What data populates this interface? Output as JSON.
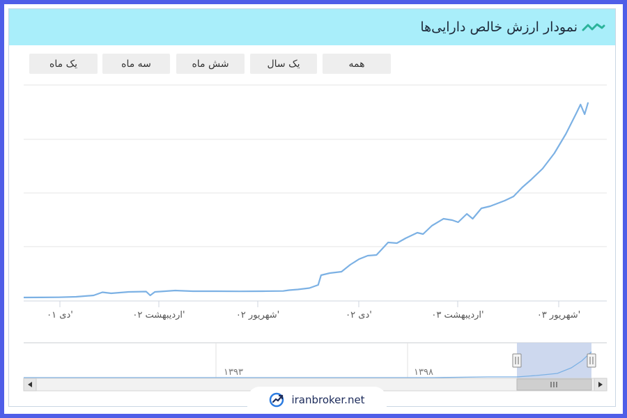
{
  "title": "نمودار ارزش خالص دارایی‌ها",
  "range_buttons": [
    {
      "label": "همه"
    },
    {
      "label": "یک سال"
    },
    {
      "label": "شش ماه"
    },
    {
      "label": "سه ماه"
    },
    {
      "label": "یک ماه"
    }
  ],
  "navigator": {
    "labels": [
      "۱۳۹۳",
      "۱۳۹۸"
    ]
  },
  "footer": {
    "brand": "iranbroker.net"
  },
  "colors": {
    "header_bg": "#a9eefa",
    "line": "#7cb1e4",
    "frame": "#4f5ee8",
    "accent": "#2ab39a"
  },
  "chart_data": {
    "type": "line",
    "title": "نمودار ارزش خالص دارایی‌ها",
    "x_ticks": [
      "دی ۰۱'",
      "اردیبهشت ۰۲'",
      "شهریور ۰۲'",
      "دی ۰۲'",
      "اردیبهشت ۰۳'",
      "شهریور ۰۳'"
    ],
    "grid": true,
    "series": [
      {
        "values": [
          [
            0.0,
            5.0
          ],
          [
            0.03,
            5.1
          ],
          [
            0.06,
            5.3
          ],
          [
            0.09,
            6.0
          ],
          [
            0.12,
            8.0
          ],
          [
            0.135,
            12.5
          ],
          [
            0.15,
            11.0
          ],
          [
            0.18,
            13.0
          ],
          [
            0.21,
            13.5
          ],
          [
            0.217,
            8.0
          ],
          [
            0.225,
            13.0
          ],
          [
            0.26,
            15.0
          ],
          [
            0.29,
            14.0
          ],
          [
            0.33,
            14.0
          ],
          [
            0.37,
            13.8
          ],
          [
            0.41,
            14.0
          ],
          [
            0.445,
            14.3
          ],
          [
            0.455,
            15.5
          ],
          [
            0.47,
            16.5
          ],
          [
            0.49,
            18.5
          ],
          [
            0.505,
            23.0
          ],
          [
            0.51,
            37.0
          ],
          [
            0.525,
            40.0
          ],
          [
            0.545,
            42.0
          ],
          [
            0.56,
            52.0
          ],
          [
            0.575,
            60.0
          ],
          [
            0.59,
            65.0
          ],
          [
            0.605,
            66.0
          ],
          [
            0.615,
            75.0
          ],
          [
            0.625,
            84.0
          ],
          [
            0.64,
            83.0
          ],
          [
            0.655,
            90.0
          ],
          [
            0.675,
            98.0
          ],
          [
            0.685,
            96.0
          ],
          [
            0.7,
            108.0
          ],
          [
            0.72,
            118.0
          ],
          [
            0.735,
            116.0
          ],
          [
            0.745,
            113.0
          ],
          [
            0.76,
            125.0
          ],
          [
            0.77,
            118.0
          ],
          [
            0.785,
            133.0
          ],
          [
            0.8,
            136.0
          ],
          [
            0.825,
            144.0
          ],
          [
            0.84,
            150.0
          ],
          [
            0.855,
            163.0
          ],
          [
            0.87,
            174.0
          ],
          [
            0.89,
            190.0
          ],
          [
            0.91,
            212.0
          ],
          [
            0.93,
            240.0
          ],
          [
            0.948,
            270.0
          ],
          [
            0.955,
            282.0
          ],
          [
            0.962,
            268.0
          ],
          [
            0.968,
            285.0
          ]
        ]
      }
    ]
  }
}
